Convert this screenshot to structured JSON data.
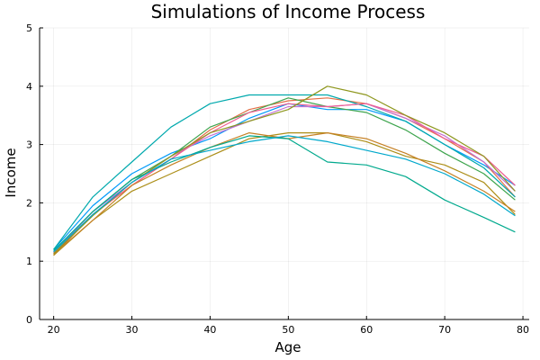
{
  "chart_data": {
    "type": "line",
    "title": "Simulations of Income Process",
    "xlabel": "Age",
    "ylabel": "Income",
    "xlim": [
      18.2,
      80.8
    ],
    "ylim": [
      0,
      5
    ],
    "xticks": [
      20,
      30,
      40,
      50,
      60,
      70,
      80
    ],
    "yticks": [
      0,
      1,
      2,
      3,
      4,
      5
    ],
    "grid": true,
    "legend": "none",
    "x": [
      20,
      25,
      30,
      35,
      40,
      45,
      50,
      55,
      60,
      65,
      70,
      75,
      79
    ],
    "series": [
      {
        "color": "#009af9",
        "values": [
          1.2,
          1.95,
          2.5,
          2.85,
          3.1,
          3.45,
          3.7,
          3.6,
          3.6,
          3.4,
          3.0,
          2.65,
          2.3
        ]
      },
      {
        "color": "#e26f46",
        "values": [
          1.1,
          1.8,
          2.3,
          2.75,
          3.25,
          3.6,
          3.75,
          3.8,
          3.7,
          3.45,
          3.1,
          2.7,
          2.1
        ]
      },
      {
        "color": "#3da44d",
        "values": [
          1.15,
          1.85,
          2.4,
          2.8,
          3.3,
          3.55,
          3.8,
          3.65,
          3.55,
          3.25,
          2.85,
          2.5,
          2.05
        ]
      },
      {
        "color": "#c271d2",
        "values": [
          1.15,
          1.85,
          2.35,
          2.8,
          3.15,
          3.4,
          3.65,
          3.65,
          3.7,
          3.45,
          3.15,
          2.7,
          2.2
        ]
      },
      {
        "color": "#ac8e18",
        "values": [
          1.1,
          1.7,
          2.2,
          2.5,
          2.8,
          3.1,
          3.2,
          3.2,
          3.05,
          2.8,
          2.65,
          2.35,
          1.8
        ]
      },
      {
        "color": "#00a9ad",
        "values": [
          1.2,
          2.1,
          2.7,
          3.3,
          3.7,
          3.85,
          3.85,
          3.85,
          3.65,
          3.4,
          3.0,
          2.6,
          2.1
        ]
      },
      {
        "color": "#ed5d92",
        "values": [
          1.15,
          1.8,
          2.3,
          2.75,
          3.2,
          3.55,
          3.7,
          3.65,
          3.7,
          3.5,
          3.1,
          2.8,
          2.3
        ]
      },
      {
        "color": "#c68125",
        "values": [
          1.12,
          1.7,
          2.3,
          2.65,
          2.95,
          3.2,
          3.1,
          3.2,
          3.1,
          2.85,
          2.55,
          2.2,
          1.85
        ]
      },
      {
        "color": "#00a98d",
        "values": [
          1.18,
          1.85,
          2.4,
          2.7,
          2.95,
          3.15,
          3.1,
          2.7,
          2.65,
          2.45,
          2.05,
          1.75,
          1.5
        ]
      },
      {
        "color": "#8e971e",
        "values": [
          1.13,
          1.78,
          2.35,
          2.8,
          3.2,
          3.4,
          3.6,
          4.0,
          3.85,
          3.5,
          3.2,
          2.8,
          2.2
        ]
      },
      {
        "color": "#00a8cb",
        "values": [
          1.16,
          1.8,
          2.35,
          2.75,
          2.9,
          3.05,
          3.15,
          3.05,
          2.9,
          2.75,
          2.5,
          2.15,
          1.78
        ]
      }
    ]
  }
}
